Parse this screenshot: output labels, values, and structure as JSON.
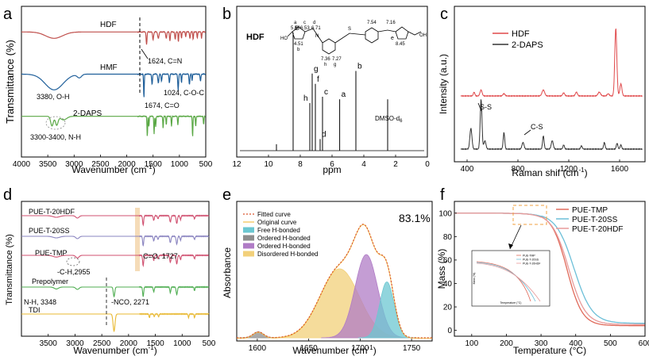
{
  "panels": [
    {
      "id": "a",
      "letter": "a",
      "chart_type": "line",
      "xlabel": "Wavenumber (cm",
      "xlabel_sup": "-1",
      "xlabel_tail": ")",
      "ylabel": "Transmittance (%)",
      "xlim": [
        4000,
        500
      ],
      "xticks": [
        "4000",
        "3500",
        "3000",
        "2500",
        "2000",
        "1500",
        "1000",
        "500"
      ],
      "series": [
        {
          "name": "HDF",
          "color": "#c0504d",
          "offset": 0.17
        },
        {
          "name": "HMF",
          "color": "#1f5f9a",
          "offset": 0.45
        },
        {
          "name": "2-DAPS",
          "color": "#5aa845",
          "offset": 0.73
        }
      ],
      "annotations": [
        "1624, C=N",
        "3380, O-H",
        "1024, C-O-C",
        "1674, C=O",
        "3300-3400, N-H"
      ]
    },
    {
      "id": "b",
      "letter": "b",
      "chart_type": "nmr",
      "xlabel": "ppm",
      "xlim": [
        12,
        0
      ],
      "xticks": [
        "12",
        "10",
        "8",
        "6",
        "4",
        "2",
        "0"
      ],
      "label": "HDF",
      "label_color": "#e0484a",
      "peaks": [
        {
          "label": "e",
          "ppm": 8.45,
          "h": 0.92,
          "color": "#e0484a"
        },
        {
          "label": "g",
          "ppm": 7.25,
          "h": 0.6,
          "color": "#000"
        },
        {
          "label": "f",
          "ppm": 7.05,
          "h": 0.52,
          "color": "#000"
        },
        {
          "label": "h",
          "ppm": 7.4,
          "h": 0.37,
          "color": "#000"
        },
        {
          "label": "c",
          "ppm": 6.6,
          "h": 0.42,
          "color": "#000"
        },
        {
          "label": "d",
          "ppm": 6.75,
          "h": 0.09,
          "color": "#000"
        },
        {
          "label": "a",
          "ppm": 5.52,
          "h": 0.4,
          "color": "#000"
        },
        {
          "label": "b",
          "ppm": 4.5,
          "h": 0.62,
          "color": "#000"
        },
        {
          "label": "",
          "ppm": 2.5,
          "h": 0.4,
          "color": "#000"
        },
        {
          "label": "",
          "ppm": 9.5,
          "h": 0.05,
          "color": "#000"
        }
      ],
      "solvent": "DMSO-d",
      "solvent_sub": "6",
      "structure_labels": [
        "a",
        "5.50",
        "c",
        "6.53",
        "6.71",
        "d",
        "4.51",
        "b",
        "7.54",
        "7.16",
        "e",
        "8.45",
        "7.36",
        "7.27",
        "h",
        "g",
        "HO",
        "OH",
        "N",
        "S"
      ]
    },
    {
      "id": "c",
      "letter": "c",
      "chart_type": "line",
      "xlabel": "Raman shif (cm",
      "xlabel_sup": "-1",
      "xlabel_tail": ")",
      "ylabel": "Intensity (a.u.)",
      "xlim": [
        300,
        1800
      ],
      "xticks": [
        "400",
        "800",
        "1200",
        "1600"
      ],
      "series": [
        {
          "name": "HDF",
          "color": "#e0484a"
        },
        {
          "name": "2-DAPS",
          "color": "#333333"
        }
      ],
      "annotations": [
        "S-S",
        "C-S"
      ]
    },
    {
      "id": "d",
      "letter": "d",
      "chart_type": "line",
      "xlabel": "Wavenumber (cm",
      "xlabel_sup": "-1",
      "xlabel_tail": ")",
      "ylabel": "Transmittance (%)",
      "xlim": [
        4000,
        500
      ],
      "xticks": [
        "3500",
        "3000",
        "2500",
        "2000",
        "1500",
        "1000",
        "500"
      ],
      "series": [
        {
          "name": "PUE-T-20HDF",
          "color": "#d05070"
        },
        {
          "name": "PUE-T-20SS",
          "color": "#8a84c0"
        },
        {
          "name": "PUE-TMP",
          "color": "#d05070"
        },
        {
          "name": "Prepolymer",
          "color": "#4fae52"
        },
        {
          "name": "TDI",
          "color": "#e8b830"
        }
      ],
      "annotations": [
        "C=O, 1727",
        "-C-H,2955",
        "N-H, 3348",
        "-NCO, 2271"
      ]
    },
    {
      "id": "e",
      "letter": "e",
      "chart_type": "area",
      "xlabel": "Wavenumber (cm",
      "xlabel_sup": "-1",
      "xlabel_tail": ")",
      "ylabel": "Absorbance",
      "xlim": [
        1580,
        1770
      ],
      "xticks": [
        "1600",
        "1650",
        "1700",
        "1750"
      ],
      "percent": "83.1%",
      "legend": [
        {
          "name": "Fitted curve",
          "color": "#d9542c",
          "style": "dot"
        },
        {
          "name": "Original curve",
          "color": "#f2c14e",
          "style": "line"
        },
        {
          "name": "Free H-bonded",
          "color": "#6cc7d1",
          "style": "box"
        },
        {
          "name": "Ordered H-bonded",
          "color": "#8e8e8e",
          "style": "box"
        },
        {
          "name": "Ordered H-bonded",
          "color": "#b07cc6",
          "style": "box"
        },
        {
          "name": "Disordered H-bonded",
          "color": "#f2d07a",
          "style": "box"
        }
      ],
      "components": [
        {
          "center": 1680,
          "sigma": 19,
          "amp": 0.58,
          "color": "#f2d07a"
        },
        {
          "center": 1706,
          "sigma": 11,
          "amp": 0.7,
          "color": "#b07cc6"
        },
        {
          "center": 1726,
          "sigma": 7,
          "amp": 0.47,
          "color": "#6cc7d1"
        },
        {
          "center": 1601,
          "sigma": 5,
          "amp": 0.05,
          "color": "#8e8e8e"
        }
      ]
    },
    {
      "id": "f",
      "letter": "f",
      "chart_type": "line",
      "xlabel": "Temperature (°C)",
      "ylabel": "Mass (%)",
      "xlim": [
        50,
        600
      ],
      "ylim": [
        -5,
        110
      ],
      "xticks": [
        "100",
        "200",
        "300",
        "400",
        "500",
        "600"
      ],
      "yticks": [
        "0",
        "20",
        "40",
        "60",
        "80",
        "100"
      ],
      "series": [
        {
          "name": "PUE-TMP",
          "color": "#e06a5a",
          "t_half": 375,
          "width": 22,
          "residue": 4
        },
        {
          "name": "PUE-T-20SS",
          "color": "#6cbfd8",
          "t_half": 395,
          "width": 26,
          "residue": 6
        },
        {
          "name": "PUE-T-20HDF",
          "color": "#e89a9a",
          "t_half": 380,
          "width": 24,
          "residue": 5
        }
      ],
      "inset_legend": [
        "PUE-TMP",
        "PUE-T-20SS",
        "PUE-T-20HDF"
      ],
      "inset_xlabel": "Temperature (°C)",
      "inset_ylabel": "Mass (%)"
    }
  ]
}
